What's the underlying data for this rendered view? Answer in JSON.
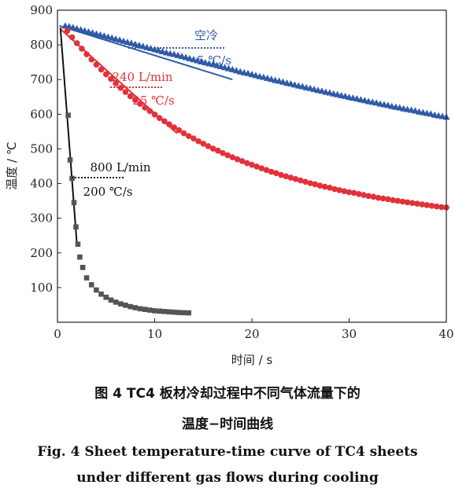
{
  "chart_data": {
    "type": "scatter",
    "xlabel": "时间 / s",
    "ylabel": "温度 / ℃",
    "xlim": [
      0,
      40
    ],
    "ylim": [
      0,
      900
    ],
    "x_ticks": [
      0,
      10,
      20,
      30,
      40
    ],
    "y_ticks": [
      100,
      200,
      300,
      400,
      500,
      600,
      700,
      800,
      900
    ],
    "series": [
      {
        "name": "空冷",
        "rate_label": "5 ℃/s",
        "color": "#2f5aa6",
        "marker": "triangle",
        "points": [
          [
            0.8,
            855
          ],
          [
            1.2,
            853
          ],
          [
            1.6,
            850
          ],
          [
            2.0,
            847
          ],
          [
            2.4,
            844
          ],
          [
            2.8,
            841
          ],
          [
            3.2,
            838
          ],
          [
            3.6,
            835
          ],
          [
            4.0,
            832
          ],
          [
            4.4,
            829
          ],
          [
            4.8,
            826
          ],
          [
            5.2,
            823
          ],
          [
            5.6,
            820
          ],
          [
            6.0,
            817
          ],
          [
            6.4,
            814
          ],
          [
            6.8,
            811
          ],
          [
            7.2,
            808
          ],
          [
            7.6,
            805
          ],
          [
            8.0,
            802
          ],
          [
            8.4,
            799
          ],
          [
            8.8,
            796
          ],
          [
            9.2,
            793
          ],
          [
            9.6,
            790
          ],
          [
            10.0,
            787
          ],
          [
            10.4,
            784
          ],
          [
            10.8,
            781
          ],
          [
            11.2,
            778
          ],
          [
            11.6,
            775
          ],
          [
            12.0,
            773
          ],
          [
            12.4,
            770
          ],
          [
            12.8,
            767
          ],
          [
            13.2,
            764
          ],
          [
            13.6,
            761
          ],
          [
            14.0,
            758
          ],
          [
            14.4,
            755
          ],
          [
            14.8,
            752
          ],
          [
            15.2,
            749
          ],
          [
            15.6,
            746
          ],
          [
            16.0,
            744
          ],
          [
            16.4,
            741
          ],
          [
            16.8,
            738
          ],
          [
            17.2,
            735
          ],
          [
            17.6,
            732
          ],
          [
            18.0,
            729
          ],
          [
            18.4,
            726
          ],
          [
            18.8,
            723
          ],
          [
            19.2,
            720
          ],
          [
            19.6,
            718
          ],
          [
            20.0,
            715
          ],
          [
            20.4,
            712
          ],
          [
            20.8,
            709
          ],
          [
            21.2,
            707
          ],
          [
            21.6,
            704
          ],
          [
            22.0,
            701
          ],
          [
            22.4,
            698
          ],
          [
            22.8,
            696
          ],
          [
            23.2,
            693
          ],
          [
            23.6,
            690
          ],
          [
            24.0,
            688
          ],
          [
            24.4,
            685
          ],
          [
            24.8,
            682
          ],
          [
            25.2,
            680
          ],
          [
            25.6,
            677
          ],
          [
            26.0,
            675
          ],
          [
            26.4,
            672
          ],
          [
            26.8,
            669
          ],
          [
            27.2,
            667
          ],
          [
            27.6,
            664
          ],
          [
            28.0,
            662
          ],
          [
            28.4,
            659
          ],
          [
            28.8,
            657
          ],
          [
            29.2,
            654
          ],
          [
            29.6,
            652
          ],
          [
            30.0,
            649
          ],
          [
            30.4,
            647
          ],
          [
            30.8,
            645
          ],
          [
            31.2,
            642
          ],
          [
            31.6,
            640
          ],
          [
            32.0,
            637
          ],
          [
            32.4,
            635
          ],
          [
            32.8,
            633
          ],
          [
            33.2,
            630
          ],
          [
            33.6,
            628
          ],
          [
            34.0,
            626
          ],
          [
            34.4,
            623
          ],
          [
            34.8,
            621
          ],
          [
            35.2,
            619
          ],
          [
            35.6,
            616
          ],
          [
            36.0,
            614
          ],
          [
            36.4,
            612
          ],
          [
            36.8,
            610
          ],
          [
            37.2,
            607
          ],
          [
            37.6,
            605
          ],
          [
            38.0,
            603
          ],
          [
            38.4,
            601
          ],
          [
            38.8,
            598
          ],
          [
            39.2,
            596
          ],
          [
            39.6,
            594
          ],
          [
            40.0,
            592
          ]
        ],
        "fit_line": [
          [
            0.2,
            855
          ],
          [
            18.0,
            700
          ]
        ]
      },
      {
        "name": "240 L/min",
        "rate_label": "25 ℃/s",
        "color": "#e2313a",
        "marker": "circle",
        "points": [
          [
            1.0,
            840
          ],
          [
            1.5,
            822
          ],
          [
            2.0,
            805
          ],
          [
            2.5,
            789
          ],
          [
            3.0,
            773
          ],
          [
            3.5,
            758
          ],
          [
            4.0,
            743
          ],
          [
            4.5,
            729
          ],
          [
            5.0,
            715
          ],
          [
            5.5,
            702
          ],
          [
            6.0,
            689
          ],
          [
            6.5,
            676
          ],
          [
            7.0,
            664
          ],
          [
            7.5,
            652
          ],
          [
            8.0,
            641
          ],
          [
            8.5,
            630
          ],
          [
            9.0,
            619
          ],
          [
            9.5,
            609
          ],
          [
            10.0,
            599
          ],
          [
            10.5,
            589
          ],
          [
            11.0,
            580
          ],
          [
            11.5,
            571
          ],
          [
            12.0,
            562
          ],
          [
            12.5,
            554
          ],
          [
            13.0,
            545
          ],
          [
            13.5,
            537
          ],
          [
            14.0,
            530
          ],
          [
            14.5,
            522
          ],
          [
            15.0,
            515
          ],
          [
            15.5,
            508
          ],
          [
            16.0,
            501
          ],
          [
            16.5,
            495
          ],
          [
            17.0,
            488
          ],
          [
            17.5,
            482
          ],
          [
            18.0,
            476
          ],
          [
            18.5,
            470
          ],
          [
            19.0,
            465
          ],
          [
            19.5,
            459
          ],
          [
            20.0,
            454
          ],
          [
            20.5,
            449
          ],
          [
            21.0,
            444
          ],
          [
            21.5,
            439
          ],
          [
            22.0,
            434
          ],
          [
            22.5,
            430
          ],
          [
            23.0,
            425
          ],
          [
            23.5,
            421
          ],
          [
            24.0,
            417
          ],
          [
            24.5,
            413
          ],
          [
            25.0,
            409
          ],
          [
            25.5,
            405
          ],
          [
            26.0,
            401
          ],
          [
            26.5,
            398
          ],
          [
            27.0,
            394
          ],
          [
            27.5,
            391
          ],
          [
            28.0,
            388
          ],
          [
            28.5,
            384
          ],
          [
            29.0,
            381
          ],
          [
            29.5,
            378
          ],
          [
            30.0,
            375
          ],
          [
            30.5,
            373
          ],
          [
            31.0,
            370
          ],
          [
            31.5,
            367
          ],
          [
            32.0,
            364
          ],
          [
            32.5,
            362
          ],
          [
            33.0,
            359
          ],
          [
            33.5,
            357
          ],
          [
            34.0,
            355
          ],
          [
            34.5,
            352
          ],
          [
            35.0,
            350
          ],
          [
            35.5,
            348
          ],
          [
            36.0,
            346
          ],
          [
            36.5,
            344
          ],
          [
            37.0,
            342
          ],
          [
            37.5,
            340
          ],
          [
            38.0,
            338
          ],
          [
            38.5,
            336
          ],
          [
            39.0,
            334
          ],
          [
            39.5,
            332
          ],
          [
            40.0,
            331
          ]
        ],
        "fit_line": [
          [
            0.3,
            846
          ],
          [
            12.3,
            545
          ]
        ]
      },
      {
        "name": "800 L/min",
        "rate_label": "200 ℃/s",
        "color": "#555555",
        "marker": "square",
        "points": [
          [
            1.1,
            597
          ],
          [
            1.3,
            468
          ],
          [
            1.5,
            415
          ],
          [
            1.7,
            345
          ],
          [
            1.9,
            275
          ],
          [
            2.1,
            225
          ],
          [
            2.3,
            188
          ],
          [
            2.6,
            158
          ],
          [
            3.0,
            128
          ],
          [
            3.5,
            108
          ],
          [
            4.0,
            93
          ],
          [
            4.5,
            81
          ],
          [
            5.0,
            72
          ],
          [
            5.5,
            64
          ],
          [
            6.0,
            58
          ],
          [
            6.5,
            53
          ],
          [
            7.0,
            49
          ],
          [
            7.5,
            45
          ],
          [
            8.0,
            42
          ],
          [
            8.5,
            39
          ],
          [
            9.0,
            37
          ],
          [
            9.5,
            35
          ],
          [
            10.0,
            33
          ],
          [
            10.5,
            32
          ],
          [
            11.0,
            31
          ],
          [
            11.5,
            30
          ],
          [
            12.0,
            29
          ],
          [
            12.5,
            28
          ],
          [
            13.0,
            27.5
          ],
          [
            13.5,
            27
          ]
        ],
        "fit_line": [
          [
            0.3,
            850
          ],
          [
            2.0,
            225
          ]
        ]
      }
    ]
  },
  "captions": {
    "cn_line1": "图 4   TC4 板材冷却过程中不同气体流量下的",
    "cn_line2": "温度−时间曲线",
    "en_line1": "Fig. 4   Sheet temperature-time curve of TC4 sheets",
    "en_line2": "under different gas flows during cooling"
  }
}
